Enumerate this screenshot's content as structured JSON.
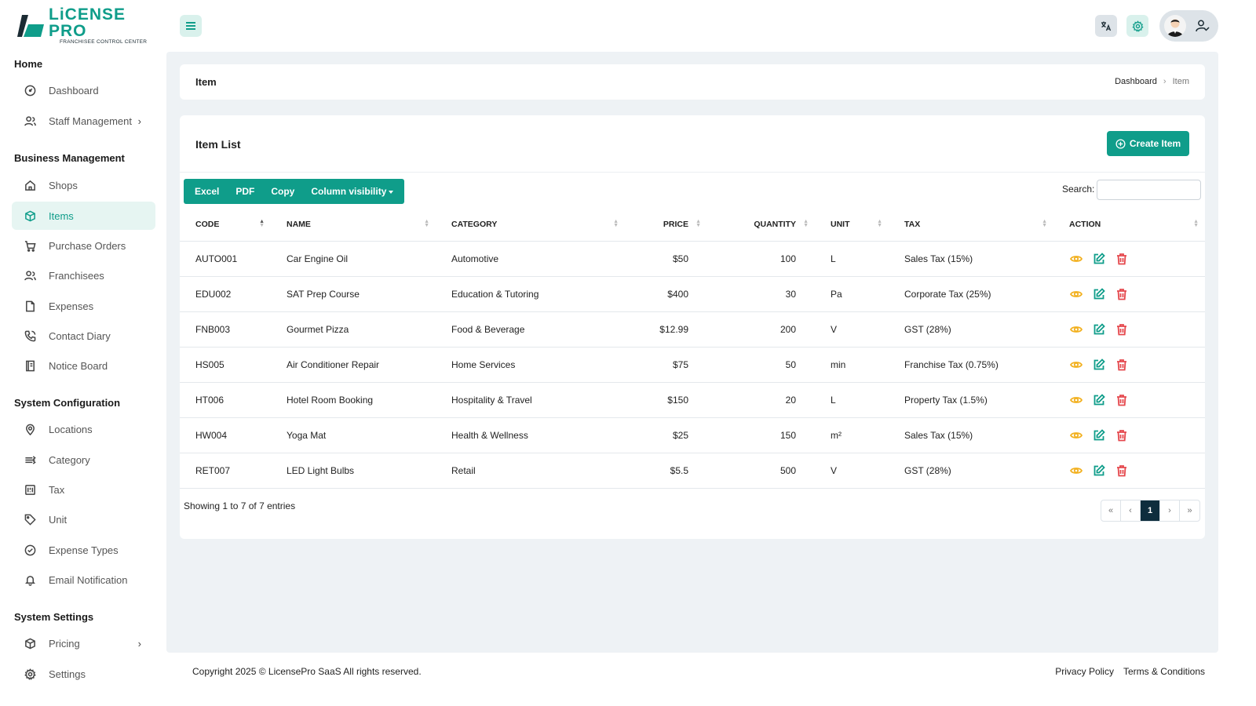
{
  "brand": {
    "title": "LiCENSE PRO",
    "subtitle": "FRANCHISEE CONTROL CENTER"
  },
  "colors": {
    "accent": "#0f9d8a",
    "view": "#f2b01e",
    "edit": "#0f9d8a",
    "delete": "#e5484d"
  },
  "sidebar": {
    "sections": [
      {
        "title": "Home",
        "items": [
          {
            "label": "Dashboard",
            "icon": "dashboard-icon"
          },
          {
            "label": "Staff Management",
            "icon": "users-icon",
            "has_submenu": true
          }
        ]
      },
      {
        "title": "Business Management",
        "items": [
          {
            "label": "Shops",
            "icon": "home-icon"
          },
          {
            "label": "Items",
            "icon": "box-icon",
            "active": true
          },
          {
            "label": "Purchase Orders",
            "icon": "cart-icon"
          },
          {
            "label": "Franchisees",
            "icon": "users-icon"
          },
          {
            "label": "Expenses",
            "icon": "file-icon"
          },
          {
            "label": "Contact Diary",
            "icon": "phone-icon"
          },
          {
            "label": "Notice Board",
            "icon": "notebook-icon"
          }
        ]
      },
      {
        "title": "System Configuration",
        "items": [
          {
            "label": "Locations",
            "icon": "map-pin-icon"
          },
          {
            "label": "Category",
            "icon": "category-icon"
          },
          {
            "label": "Tax",
            "icon": "tax-icon"
          },
          {
            "label": "Unit",
            "icon": "tag-icon"
          },
          {
            "label": "Expense Types",
            "icon": "check-circle-icon"
          },
          {
            "label": "Email Notification",
            "icon": "bell-icon"
          }
        ]
      },
      {
        "title": "System Settings",
        "items": [
          {
            "label": "Pricing",
            "icon": "box-icon",
            "has_submenu": true
          },
          {
            "label": "Settings",
            "icon": "gear-icon"
          }
        ]
      }
    ]
  },
  "breadcrumb": {
    "title": "Item",
    "path": [
      "Dashboard",
      "Item"
    ]
  },
  "list": {
    "title": "Item List",
    "create_label": "Create Item",
    "export_buttons": [
      "Excel",
      "PDF",
      "Copy",
      "Column visibility"
    ],
    "search_label": "Search:",
    "search_value": "",
    "columns": [
      "Code",
      "Name",
      "Category",
      "Price",
      "Quantity",
      "Unit",
      "Tax",
      "Action"
    ],
    "rows": [
      {
        "code": "AUTO001",
        "name": "Car Engine Oil",
        "category": "Automotive",
        "price": "$50",
        "quantity": "100",
        "unit": "L",
        "tax": "Sales Tax (15%)"
      },
      {
        "code": "EDU002",
        "name": "SAT Prep Course",
        "category": "Education & Tutoring",
        "price": "$400",
        "quantity": "30",
        "unit": "Pa",
        "tax": "Corporate Tax (25%)"
      },
      {
        "code": "FNB003",
        "name": "Gourmet Pizza",
        "category": "Food & Beverage",
        "price": "$12.99",
        "quantity": "200",
        "unit": "V",
        "tax": "GST (28%)"
      },
      {
        "code": "HS005",
        "name": "Air Conditioner Repair",
        "category": "Home Services",
        "price": "$75",
        "quantity": "50",
        "unit": "min",
        "tax": "Franchise Tax (0.75%)"
      },
      {
        "code": "HT006",
        "name": "Hotel Room Booking",
        "category": "Hospitality & Travel",
        "price": "$150",
        "quantity": "20",
        "unit": "L",
        "tax": "Property Tax (1.5%)"
      },
      {
        "code": "HW004",
        "name": "Yoga Mat",
        "category": "Health & Wellness",
        "price": "$25",
        "quantity": "150",
        "unit": "m²",
        "tax": "Sales Tax (15%)"
      },
      {
        "code": "RET007",
        "name": "LED Light Bulbs",
        "category": "Retail",
        "price": "$5.5",
        "quantity": "500",
        "unit": "V",
        "tax": "GST (28%)"
      }
    ],
    "info": "Showing 1 to 7 of 7 entries",
    "pager": [
      "«",
      "‹",
      "1",
      "›",
      "»"
    ],
    "current_page": "1"
  },
  "footer": {
    "copyright": "Copyright 2025 © LicensePro SaaS All rights reserved.",
    "links": [
      "Privacy Policy",
      "Terms & Conditions"
    ]
  }
}
